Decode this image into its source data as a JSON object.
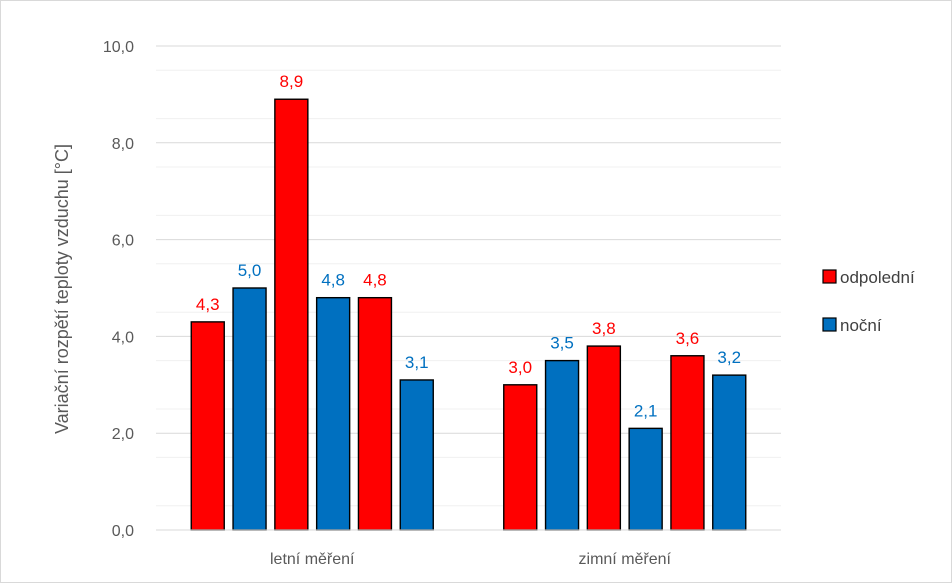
{
  "chart_data": {
    "type": "bar",
    "title": "",
    "xlabel": "",
    "ylabel": "Variační rozpětí teploty vzduchu [°C]",
    "ylim": [
      0,
      10
    ],
    "yticks": [
      0,
      2,
      4,
      6,
      8,
      10
    ],
    "ytick_labels": [
      "0,0",
      "2,0",
      "4,0",
      "6,0",
      "8,0",
      "10,0"
    ],
    "grid": true,
    "minor_grid": true,
    "legend_position": "right",
    "categories": [
      "letní měření",
      "zimní měření"
    ],
    "series": [
      {
        "name": "odpolední",
        "color": "#ff0000",
        "label_color": "#ff0000"
      },
      {
        "name": "noční",
        "color": "#0070c0",
        "label_color": "#0070c0"
      }
    ],
    "bars": [
      [
        {
          "series": 0,
          "value": 4.3,
          "label": "4,3"
        },
        {
          "series": 1,
          "value": 5.0,
          "label": "5,0"
        },
        {
          "series": 0,
          "value": 8.9,
          "label": "8,9"
        },
        {
          "series": 1,
          "value": 4.8,
          "label": "4,8"
        },
        {
          "series": 0,
          "value": 4.8,
          "label": "4,8"
        },
        {
          "series": 1,
          "value": 3.1,
          "label": "3,1"
        }
      ],
      [
        {
          "series": 0,
          "value": 3.0,
          "label": "3,0"
        },
        {
          "series": 1,
          "value": 3.5,
          "label": "3,5"
        },
        {
          "series": 0,
          "value": 3.8,
          "label": "3,8"
        },
        {
          "series": 1,
          "value": 2.1,
          "label": "2,1"
        },
        {
          "series": 0,
          "value": 3.6,
          "label": "3,6"
        },
        {
          "series": 1,
          "value": 3.2,
          "label": "3,2"
        }
      ]
    ]
  }
}
